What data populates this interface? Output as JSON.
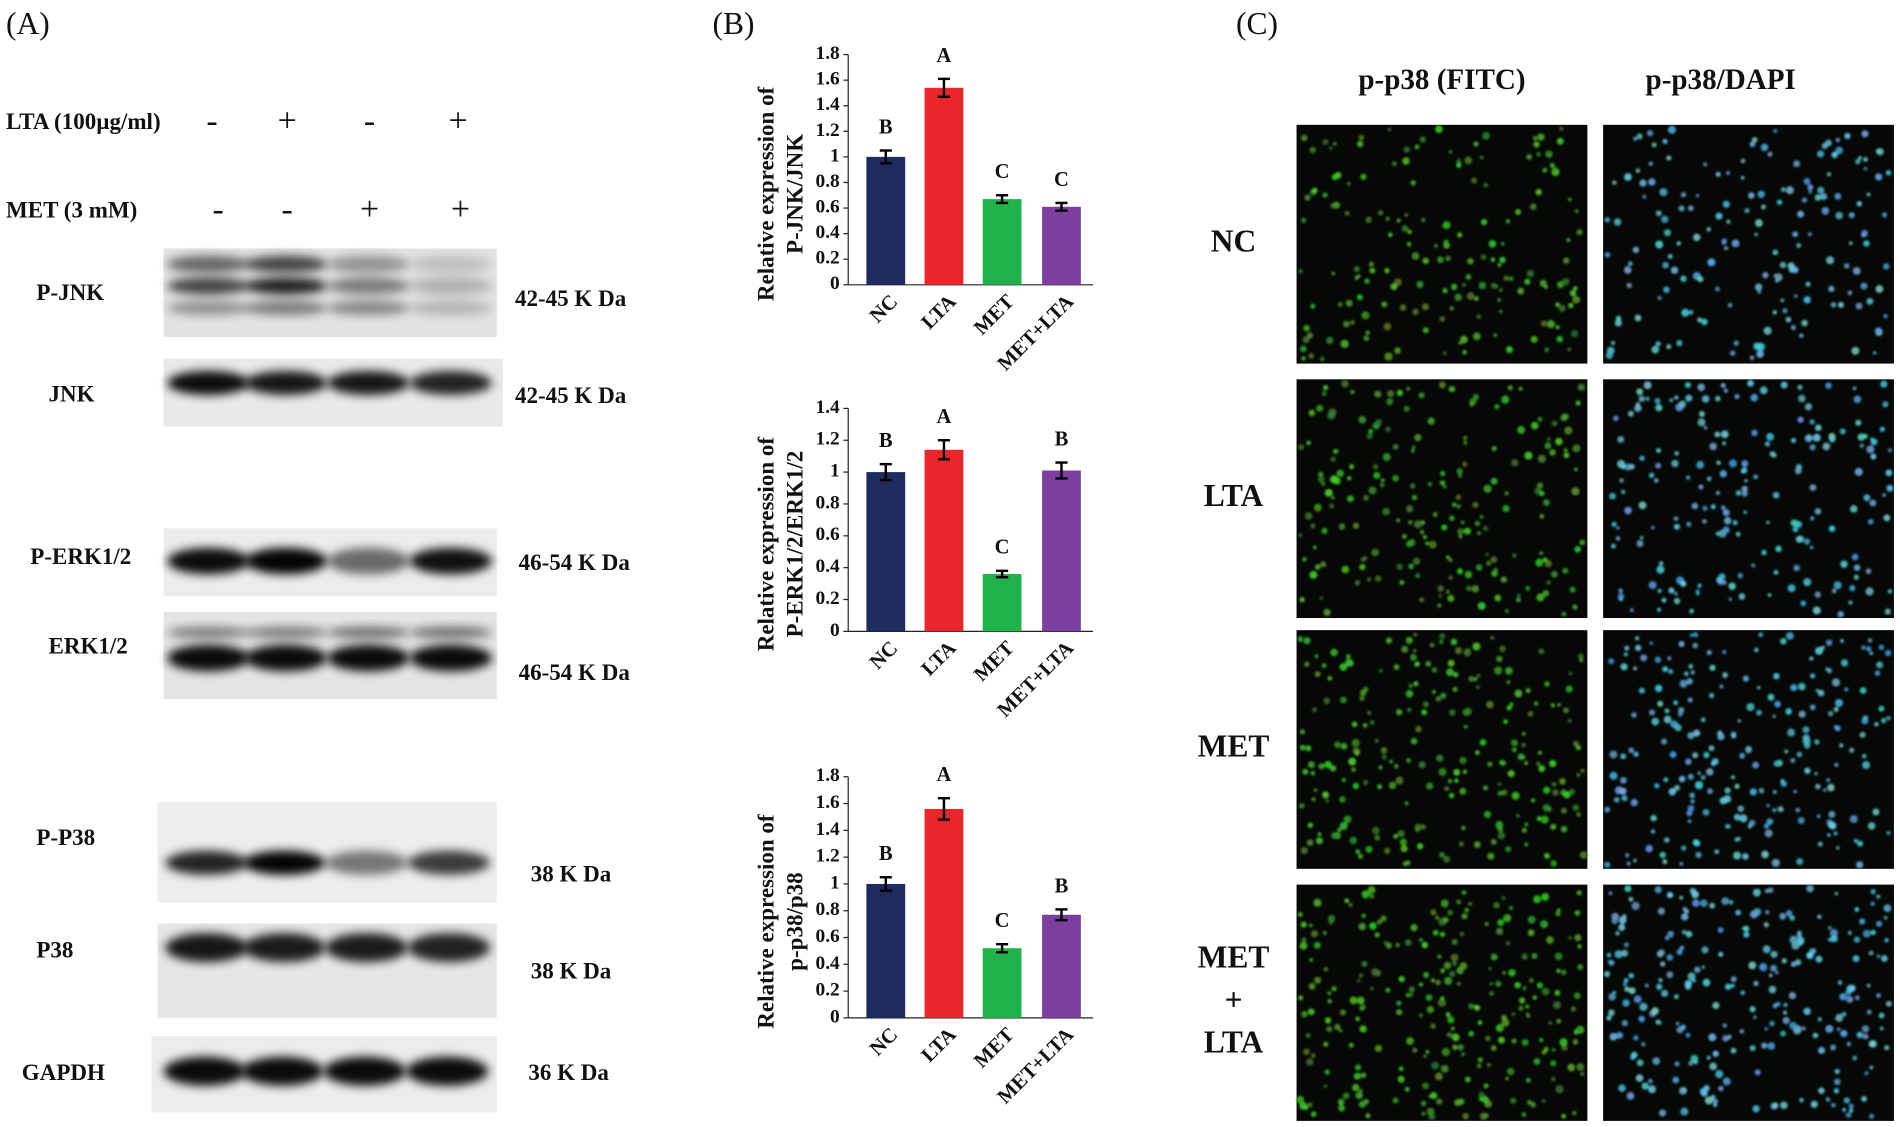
{
  "panels": {
    "a": "(A)",
    "b": "(B)",
    "c": "(C)"
  },
  "blot": {
    "treatments": [
      {
        "label": "LTA (100µg/ml)",
        "signs": [
          "-",
          "+",
          "-",
          "+"
        ]
      },
      {
        "label": "MET (3 mM)",
        "signs": [
          "-",
          "-",
          "+",
          "+"
        ]
      }
    ],
    "proteins": [
      {
        "name": "P-JNK",
        "size": "42-45 K Da"
      },
      {
        "name": "JNK",
        "size": "42-45 K Da"
      },
      {
        "name": "P-ERK1/2",
        "size": "46-54 K Da"
      },
      {
        "name": "ERK1/2",
        "size": "46-54 K Da"
      },
      {
        "name": "P-P38",
        "size": "38 K Da"
      },
      {
        "name": "P38",
        "size": "38 K Da"
      },
      {
        "name": "GAPDH",
        "size": "36 K Da"
      }
    ]
  },
  "chart_data": [
    {
      "type": "bar",
      "ylabel": [
        "Relative expression of",
        "P-JNK/JNK"
      ],
      "categories": [
        "NC",
        "LTA",
        "MET",
        "MET+LTA"
      ],
      "values": [
        1.0,
        1.54,
        0.67,
        0.61
      ],
      "errors": [
        0.05,
        0.07,
        0.03,
        0.03
      ],
      "letters": [
        "B",
        "A",
        "C",
        "C"
      ],
      "colors": [
        "#1f2a5e",
        "#e8262b",
        "#22b24c",
        "#7c3f9f"
      ],
      "ylim": [
        0,
        1.8
      ],
      "yticks": [
        0,
        0.2,
        0.4,
        0.6,
        0.8,
        1,
        1.2,
        1.4,
        1.6,
        1.8
      ]
    },
    {
      "type": "bar",
      "ylabel": [
        "Relative expression of",
        "P-ERK1/2/ERK1/2"
      ],
      "categories": [
        "NC",
        "LTA",
        "MET",
        "MET+LTA"
      ],
      "values": [
        1.0,
        1.14,
        0.36,
        1.01
      ],
      "errors": [
        0.05,
        0.06,
        0.02,
        0.05
      ],
      "letters": [
        "B",
        "A",
        "C",
        "B"
      ],
      "colors": [
        "#1f2a5e",
        "#e8262b",
        "#22b24c",
        "#7c3f9f"
      ],
      "ylim": [
        0,
        1.4
      ],
      "yticks": [
        0,
        0.2,
        0.4,
        0.6,
        0.8,
        1,
        1.2,
        1.4
      ]
    },
    {
      "type": "bar",
      "ylabel": [
        "Relative expression of",
        "p-p38/p38"
      ],
      "categories": [
        "NC",
        "LTA",
        "MET",
        "MET+LTA"
      ],
      "values": [
        1.0,
        1.56,
        0.52,
        0.77
      ],
      "errors": [
        0.05,
        0.08,
        0.03,
        0.04
      ],
      "letters": [
        "B",
        "A",
        "C",
        "B"
      ],
      "colors": [
        "#1f2a5e",
        "#e8262b",
        "#22b24c",
        "#7c3f9f"
      ],
      "ylim": [
        0,
        1.8
      ],
      "yticks": [
        0,
        0.2,
        0.4,
        0.6,
        0.8,
        1,
        1.2,
        1.4,
        1.6,
        1.8
      ]
    }
  ],
  "microscopy": {
    "columns": [
      "p-p38 (FITC)",
      "p-p38/DAPI"
    ],
    "rows": [
      [
        "NC"
      ],
      [
        "LTA"
      ],
      [
        "MET"
      ],
      [
        "MET",
        "+",
        "LTA"
      ]
    ]
  }
}
